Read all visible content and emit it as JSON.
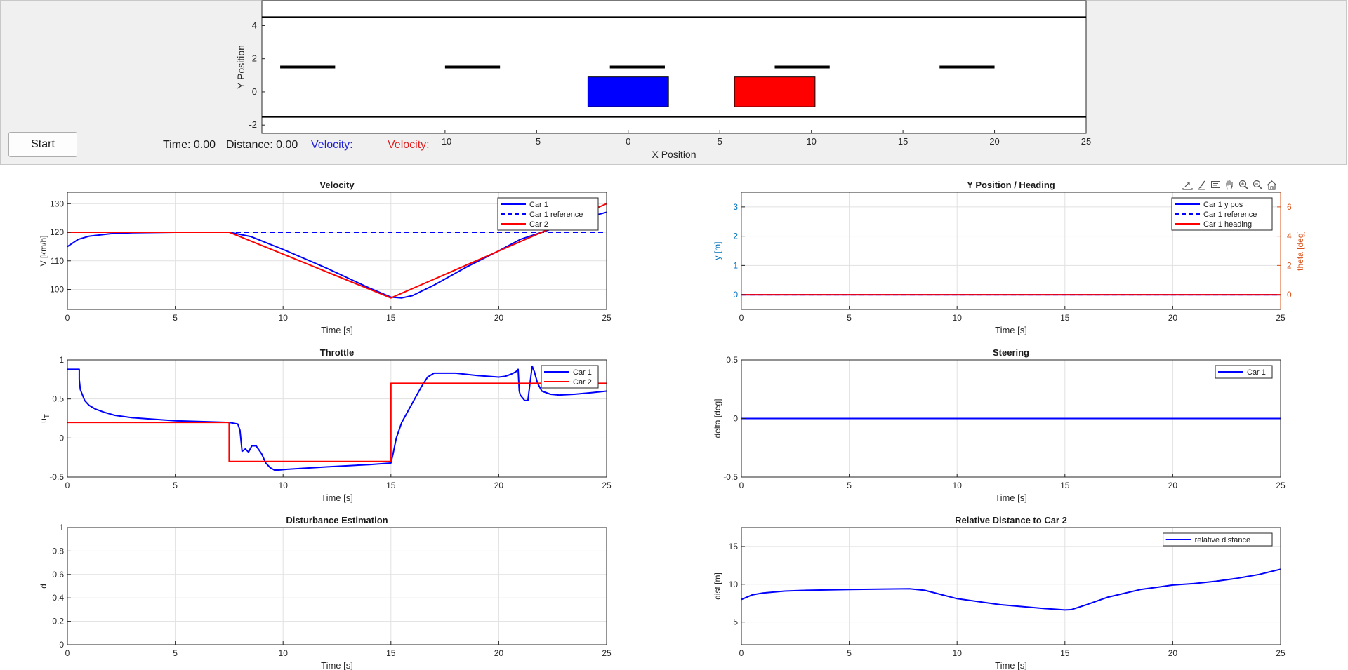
{
  "controls": {
    "start_label": "Start",
    "time_text": "Time: 0.00",
    "distance_text": "Distance: 0.00",
    "velocity1_text": "Velocity:",
    "velocity2_text": "Velocity:",
    "velocity1_color": "#1f1fd6",
    "velocity2_color": "#e02020"
  },
  "road": {
    "xlabel": "X Position",
    "ylabel": "Y Position",
    "xlim": [
      -20,
      25
    ],
    "ylim": [
      -2.5,
      5.5
    ],
    "xticks": [
      "-10",
      "-5",
      "0",
      "5",
      "10",
      "15",
      "20",
      "25"
    ],
    "yticks": [
      "4",
      "2",
      "0",
      "-2"
    ],
    "lane_dashes_x": [
      -17.5,
      -8.5,
      0.5,
      9.5,
      18.5
    ],
    "car1_color": "#0000ff",
    "car2_color": "#ff0000"
  },
  "toolbar": {
    "icons": [
      "export-icon",
      "brush-icon",
      "datatip-icon",
      "pan-icon",
      "zoom-in-icon",
      "zoom-out-icon",
      "home-icon"
    ]
  },
  "chart_data": [
    {
      "type": "line",
      "title": "Velocity",
      "xlabel": "Time [s]",
      "ylabel": "V [km/h]",
      "xlim": [
        0,
        25
      ],
      "ylim": [
        93,
        134
      ],
      "xticks": [
        "0",
        "5",
        "10",
        "15",
        "20",
        "25"
      ],
      "yticks": [
        "100",
        "110",
        "120",
        "130"
      ],
      "grid": true,
      "legend": "top-right",
      "series": [
        {
          "name": "Car 1",
          "color": "#0000ff",
          "style": "solid",
          "x": [
            0,
            0.5,
            1,
            2,
            3,
            5,
            7.5,
            8.5,
            10,
            12,
            14,
            15,
            15.5,
            16,
            17,
            18.5,
            20,
            21,
            22,
            23,
            24,
            25
          ],
          "y": [
            115,
            117.5,
            118.6,
            119.5,
            119.8,
            120,
            120,
            118.5,
            114,
            107.5,
            100.5,
            97.3,
            97,
            97.8,
            101.5,
            107.8,
            113.5,
            117.5,
            120,
            122.5,
            125,
            127
          ]
        },
        {
          "name": "Car 1 reference",
          "color": "#0000ff",
          "style": "dashed",
          "x": [
            0,
            25
          ],
          "y": [
            120,
            120
          ]
        },
        {
          "name": "Car 2",
          "color": "#ff0000",
          "style": "solid",
          "x": [
            0,
            7.5,
            15,
            22,
            25
          ],
          "y": [
            120,
            120,
            97,
            120,
            130
          ]
        }
      ]
    },
    {
      "type": "line",
      "title": "Y Position / Heading",
      "xlabel": "Time [s]",
      "ylabel": "y [m]",
      "y2label": "theta [deg]",
      "xlim": [
        0,
        25
      ],
      "ylim": [
        -0.5,
        3.5
      ],
      "y2lim": [
        -1,
        7
      ],
      "xticks": [
        "0",
        "5",
        "10",
        "15",
        "20",
        "25"
      ],
      "yticks": [
        "0",
        "1",
        "2",
        "3"
      ],
      "y2ticks": [
        "0",
        "2",
        "4",
        "6"
      ],
      "ylabel_color": "#0072bd",
      "y2label_color": "#d95319",
      "grid": true,
      "legend": "top-right",
      "series": [
        {
          "name": "Car 1 y pos",
          "color": "#0000ff",
          "style": "solid",
          "x": [
            0,
            25
          ],
          "y": [
            0,
            0
          ]
        },
        {
          "name": "Car 1 reference",
          "color": "#0000ff",
          "style": "dashed",
          "x": [
            0,
            25
          ],
          "y": [
            0,
            0
          ]
        },
        {
          "name": "Car 1 heading",
          "color": "#ff0000",
          "style": "solid",
          "x": [
            0,
            25
          ],
          "y": [
            0,
            0
          ]
        }
      ]
    },
    {
      "type": "line",
      "title": "Throttle",
      "xlabel": "Time [s]",
      "ylabel": "u",
      "ylabel_sub": "T",
      "xlim": [
        0,
        25
      ],
      "ylim": [
        -0.5,
        1
      ],
      "xticks": [
        "0",
        "5",
        "10",
        "15",
        "20",
        "25"
      ],
      "yticks": [
        "1",
        "0.5",
        "0",
        "-0.5"
      ],
      "grid": true,
      "legend": "top-right",
      "series": [
        {
          "name": "Car 1",
          "color": "#0000ff",
          "style": "solid",
          "x": [
            0,
            0.55,
            0.55,
            0.6,
            0.7,
            0.8,
            1,
            1.3,
            1.7,
            2.2,
            3,
            5,
            7.5,
            7.9,
            8.0,
            8.1,
            8.25,
            8.4,
            8.55,
            8.75,
            9.0,
            9.2,
            9.4,
            9.6,
            9.8,
            10.2,
            12,
            14,
            15.0,
            15.1,
            15.25,
            15.5,
            15.8,
            16.1,
            16.4,
            16.7,
            17,
            18,
            19,
            20,
            20.3,
            20.6,
            20.8,
            20.9,
            20.95,
            21,
            21.2,
            21.35,
            21.45,
            21.55,
            21.65,
            21.8,
            22,
            22.4,
            22.8,
            23.5,
            24.3,
            25
          ],
          "y": [
            0.88,
            0.88,
            0.75,
            0.62,
            0.55,
            0.48,
            0.42,
            0.37,
            0.33,
            0.29,
            0.26,
            0.22,
            0.2,
            0.18,
            0.1,
            -0.17,
            -0.14,
            -0.18,
            -0.1,
            -0.1,
            -0.2,
            -0.32,
            -0.38,
            -0.41,
            -0.41,
            -0.4,
            -0.37,
            -0.34,
            -0.32,
            -0.2,
            0,
            0.2,
            0.35,
            0.5,
            0.65,
            0.78,
            0.83,
            0.83,
            0.8,
            0.78,
            0.79,
            0.82,
            0.85,
            0.88,
            0.6,
            0.55,
            0.48,
            0.48,
            0.7,
            0.92,
            0.85,
            0.7,
            0.6,
            0.56,
            0.55,
            0.56,
            0.58,
            0.6
          ]
        },
        {
          "name": "Car 2",
          "color": "#ff0000",
          "style": "solid",
          "x": [
            0,
            7.5,
            7.5,
            15,
            15,
            25
          ],
          "y": [
            0.2,
            0.2,
            -0.3,
            -0.3,
            0.7,
            0.7
          ]
        }
      ]
    },
    {
      "type": "line",
      "title": "Steering",
      "xlabel": "Time [s]",
      "ylabel": "delta [deg]",
      "xlim": [
        0,
        25
      ],
      "ylim": [
        -0.5,
        0.5
      ],
      "xticks": [
        "0",
        "5",
        "10",
        "15",
        "20",
        "25"
      ],
      "yticks": [
        "0.5",
        "0",
        "-0.5"
      ],
      "grid": true,
      "legend": "top-right",
      "series": [
        {
          "name": "Car 1",
          "color": "#0000ff",
          "style": "solid",
          "x": [
            0,
            25
          ],
          "y": [
            0,
            0
          ]
        }
      ]
    },
    {
      "type": "line",
      "title": "Disturbance Estimation",
      "xlabel": "Time [s]",
      "ylabel": "d",
      "xlim": [
        0,
        25
      ],
      "ylim": [
        0,
        1
      ],
      "xticks": [
        "0",
        "5",
        "10",
        "15",
        "20",
        "25"
      ],
      "yticks": [
        "1",
        "0.8",
        "0.6",
        "0.4",
        "0.2",
        "0"
      ],
      "grid": true,
      "series": []
    },
    {
      "type": "line",
      "title": "Relative Distance to Car 2",
      "xlabel": "Time [s]",
      "ylabel": "dist [m]",
      "xlim": [
        0,
        25
      ],
      "ylim": [
        2,
        17.5
      ],
      "xticks": [
        "0",
        "5",
        "10",
        "15",
        "20",
        "25"
      ],
      "yticks": [
        "15",
        "10",
        "5"
      ],
      "grid": true,
      "legend": "top-right",
      "series": [
        {
          "name": "relative distance",
          "color": "#0000ff",
          "style": "solid",
          "x": [
            0,
            0.5,
            1,
            2,
            3,
            5,
            7,
            7.8,
            8.5,
            10,
            12,
            14,
            15,
            15.3,
            16,
            17,
            18.5,
            20,
            21,
            22,
            23,
            24,
            25
          ],
          "y": [
            8,
            8.6,
            8.85,
            9.1,
            9.2,
            9.3,
            9.38,
            9.4,
            9.2,
            8.1,
            7.3,
            6.8,
            6.6,
            6.65,
            7.3,
            8.3,
            9.3,
            9.9,
            10.1,
            10.4,
            10.8,
            11.3,
            12
          ]
        }
      ]
    }
  ]
}
